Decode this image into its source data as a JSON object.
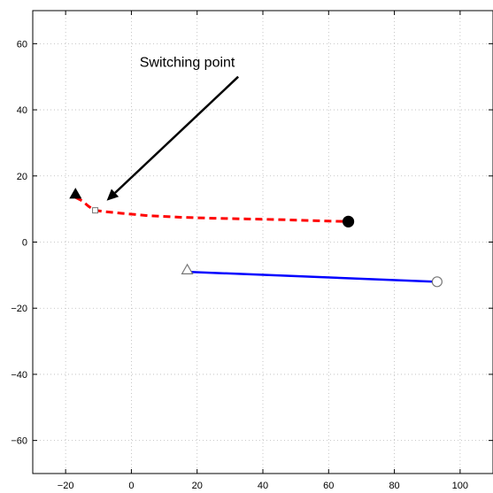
{
  "chart_data": {
    "type": "line",
    "title": "",
    "xlabel": "",
    "ylabel": "",
    "xlim": [
      -30,
      110
    ],
    "ylim": [
      -70,
      70
    ],
    "xticks": [
      -20,
      0,
      20,
      40,
      60,
      80,
      100
    ],
    "yticks": [
      -60,
      -40,
      -20,
      0,
      20,
      40,
      60
    ],
    "grid": true,
    "series": [
      {
        "style": "dashed",
        "color": "#ff0000",
        "x": [
          -17,
          -15,
          -13,
          -11,
          -8,
          -3,
          5,
          15,
          25,
          35,
          45,
          55,
          62,
          66
        ],
        "y": [
          13.5,
          12.5,
          10.8,
          9.6,
          9.2,
          8.7,
          8.0,
          7.5,
          7.2,
          7.0,
          6.8,
          6.5,
          6.3,
          6.2
        ]
      },
      {
        "style": "solid",
        "color": "#0000ff",
        "x": [
          17,
          93
        ],
        "y": [
          -9,
          -12
        ]
      }
    ],
    "markers": [
      {
        "shape": "triangle",
        "fill": "filled",
        "x": -17,
        "y": 14.5
      },
      {
        "shape": "square",
        "fill": "open",
        "x": -11,
        "y": 9.6
      },
      {
        "shape": "circle",
        "fill": "filled",
        "x": 66,
        "y": 6.2
      },
      {
        "shape": "triangle",
        "fill": "open",
        "x": 17,
        "y": -8.4
      },
      {
        "shape": "circle",
        "fill": "open",
        "x": 93,
        "y": -12
      }
    ],
    "annotations": [
      {
        "text": "Switching point",
        "x": 17,
        "y": 53,
        "arrow_from": [
          32.5,
          50
        ],
        "arrow_to": [
          -7.5,
          12.5
        ]
      }
    ]
  }
}
